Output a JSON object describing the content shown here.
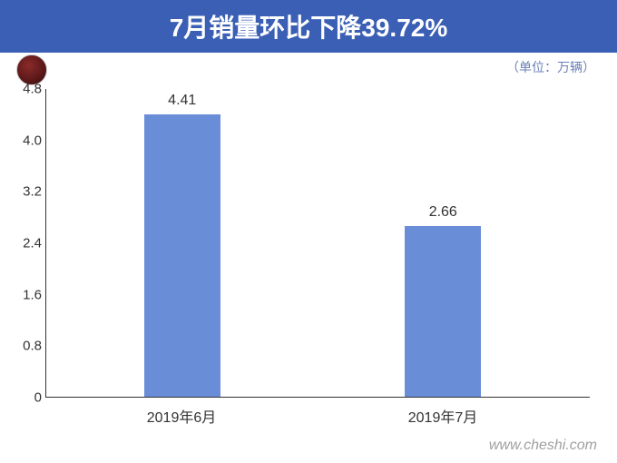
{
  "header": {
    "title": "7月销量环比下降39.72%",
    "unit_label": "（单位：万辆）"
  },
  "chart": {
    "type": "bar",
    "categories": [
      "2019年6月",
      "2019年7月"
    ],
    "values": [
      4.41,
      2.66
    ],
    "bar_color": "#6a8dd8",
    "bar_width_pct": 14,
    "bar_positions_pct": [
      25,
      73
    ],
    "title_color": "#ffffff",
    "header_bg": "#3a5fb4",
    "background_color": "#ffffff",
    "axis_color": "#333333",
    "text_color": "#333333",
    "subheader_color": "#6a7fb8",
    "ylim": [
      0,
      4.8
    ],
    "ytick_step": 0.8,
    "yticks": [
      "0",
      "0.8",
      "1.6",
      "2.4",
      "3.2",
      "4.0",
      "4.8"
    ],
    "label_fontsize": 16,
    "tick_fontsize": 15,
    "title_fontsize": 28
  },
  "footer": {
    "watermark": "www.cheshi.com"
  }
}
